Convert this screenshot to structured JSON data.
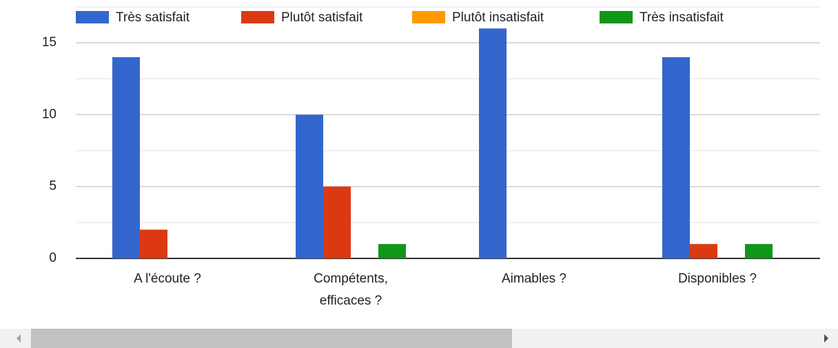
{
  "chart_data": {
    "type": "bar",
    "categories": [
      "A l'écoute ?",
      "Compétents, efficaces ?",
      "Aimables ?",
      "Disponibles ?"
    ],
    "series": [
      {
        "name": "Très satisfait",
        "color": "#3366cc",
        "values": [
          14,
          10,
          16,
          14
        ]
      },
      {
        "name": "Plutôt satisfait",
        "color": "#dc3912",
        "values": [
          2,
          5,
          0,
          1
        ]
      },
      {
        "name": "Plutôt insatisfait",
        "color": "#ff9900",
        "values": [
          0,
          0,
          0,
          0
        ]
      },
      {
        "name": "Très insatisfait",
        "color": "#109618",
        "values": [
          0,
          1,
          0,
          1
        ]
      }
    ],
    "ylim": [
      0,
      17.5
    ],
    "yticks": [
      0,
      5,
      10,
      15
    ],
    "y_minor_ticks": [
      2.5,
      7.5,
      12.5,
      17.5
    ],
    "grid": true,
    "legend": "top"
  }
}
